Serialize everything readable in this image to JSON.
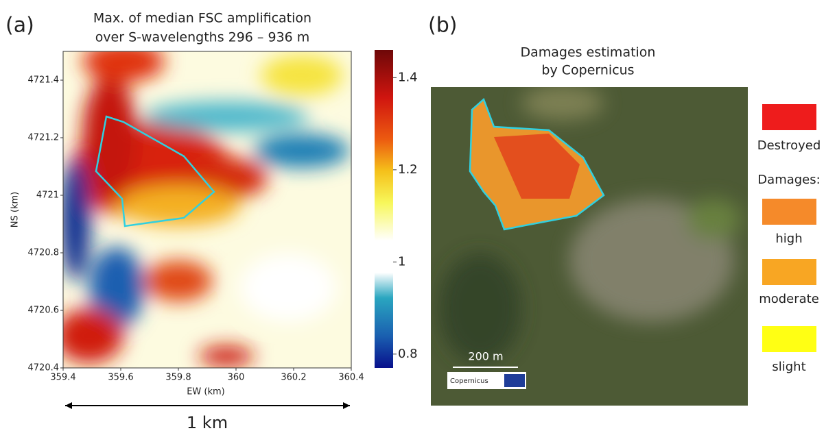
{
  "chart_data": {
    "type": "heatmap",
    "panel_label": "(a)",
    "title": [
      "Max. of median FSC amplification",
      "over S-wavelengths 296 – 936 m"
    ],
    "xlabel": "EW (km)",
    "ylabel": "NS (km)",
    "xlim": [
      359.4,
      360.4
    ],
    "xticks": [
      359.4,
      359.6,
      359.8,
      360,
      360.2,
      360.4
    ],
    "ylim": [
      4720.4,
      4721.5
    ],
    "yticks": [
      4720.4,
      4720.6,
      4720.8,
      4721,
      4721.2,
      4721.4
    ],
    "colorbar": {
      "lim": [
        0.77,
        1.46
      ],
      "ticks": [
        0.8,
        1,
        1.2,
        1.4
      ]
    },
    "scale_label": "1 km"
  },
  "panel_b": {
    "panel_label": "(b)",
    "title": [
      "Damages estimation",
      "by Copernicus"
    ],
    "legend_header": "Damages:",
    "legend": [
      {
        "name": "Destroyed",
        "color": "#ee1c1c"
      },
      {
        "name": "high",
        "color": "#f58a2a"
      },
      {
        "name": "moderate",
        "color": "#f8a623"
      },
      {
        "name": "slight",
        "color": "#ffff14"
      }
    ],
    "scale_label": "200 m",
    "logo": "Copernicus"
  }
}
